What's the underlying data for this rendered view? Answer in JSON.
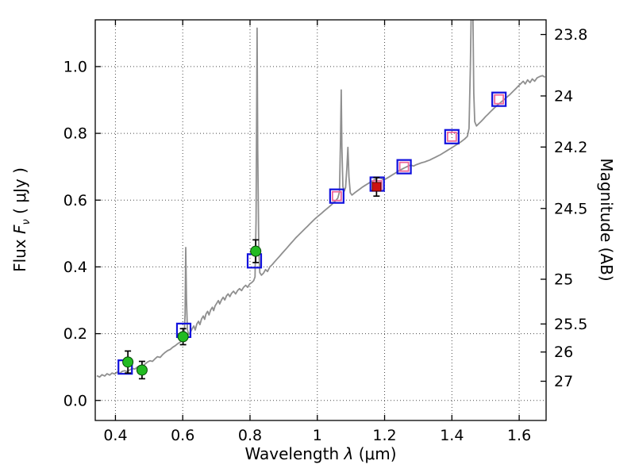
{
  "chart_data": {
    "type": "line",
    "title": "",
    "xlabel_parts": {
      "prefix": "Wavelength ",
      "symbol": "λ",
      "units": " (μm)"
    },
    "ylabel_left_parts": {
      "prefix": "Flux ",
      "symbol": "F",
      "sub": "ν",
      "units": " ( μJy )"
    },
    "ylabel_right": "Magnitude (AB)",
    "xlim": [
      0.34,
      1.68
    ],
    "ylim": [
      -0.06,
      1.14
    ],
    "grid": {
      "show": true,
      "color": "#4a4a4a",
      "dash": "1 3"
    },
    "frame_color": "#000000",
    "errorbar_color": "#000000",
    "x_ticks": [
      {
        "v": 0.4,
        "label": "0.4"
      },
      {
        "v": 0.6,
        "label": "0.6"
      },
      {
        "v": 0.8,
        "label": "0.8"
      },
      {
        "v": 1.0,
        "label": "1"
      },
      {
        "v": 1.2,
        "label": "1.2"
      },
      {
        "v": 1.4,
        "label": "1.4"
      },
      {
        "v": 1.6,
        "label": "1.6"
      }
    ],
    "y_ticks_left": [
      {
        "v": 0.0,
        "label": "0.0"
      },
      {
        "v": 0.2,
        "label": "0.2"
      },
      {
        "v": 0.4,
        "label": "0.4"
      },
      {
        "v": 0.6,
        "label": "0.6"
      },
      {
        "v": 0.8,
        "label": "0.8"
      },
      {
        "v": 1.0,
        "label": "1.0"
      }
    ],
    "y_ticks_right": [
      {
        "flux": 1.096,
        "label": "23.8"
      },
      {
        "flux": 0.912,
        "label": "24"
      },
      {
        "flux": 0.759,
        "label": "24.2"
      },
      {
        "flux": 0.575,
        "label": "24.5"
      },
      {
        "flux": 0.363,
        "label": "25"
      },
      {
        "flux": 0.229,
        "label": "25.5"
      },
      {
        "flux": 0.145,
        "label": "26"
      },
      {
        "flux": 0.0575,
        "label": "27"
      }
    ],
    "series": [
      {
        "name": "model-spectrum",
        "kind": "line",
        "color": "#8f8f8f",
        "width": 1.8,
        "points": [
          [
            0.345,
            0.074
          ],
          [
            0.353,
            0.07
          ],
          [
            0.36,
            0.077
          ],
          [
            0.368,
            0.073
          ],
          [
            0.375,
            0.08
          ],
          [
            0.383,
            0.076
          ],
          [
            0.39,
            0.082
          ],
          [
            0.398,
            0.079
          ],
          [
            0.405,
            0.085
          ],
          [
            0.413,
            0.081
          ],
          [
            0.42,
            0.087
          ],
          [
            0.428,
            0.089
          ],
          [
            0.435,
            0.086
          ],
          [
            0.443,
            0.092
          ],
          [
            0.45,
            0.096
          ],
          [
            0.458,
            0.094
          ],
          [
            0.465,
            0.1
          ],
          [
            0.472,
            0.104
          ],
          [
            0.48,
            0.102
          ],
          [
            0.488,
            0.109
          ],
          [
            0.495,
            0.115
          ],
          [
            0.503,
            0.119
          ],
          [
            0.51,
            0.117
          ],
          [
            0.518,
            0.125
          ],
          [
            0.525,
            0.131
          ],
          [
            0.533,
            0.129
          ],
          [
            0.54,
            0.137
          ],
          [
            0.548,
            0.144
          ],
          [
            0.555,
            0.149
          ],
          [
            0.563,
            0.153
          ],
          [
            0.57,
            0.159
          ],
          [
            0.578,
            0.164
          ],
          [
            0.585,
            0.17
          ],
          [
            0.593,
            0.175
          ],
          [
            0.6,
            0.179
          ],
          [
            0.604,
            0.186
          ],
          [
            0.607,
            0.26
          ],
          [
            0.609,
            0.458
          ],
          [
            0.611,
            0.305
          ],
          [
            0.614,
            0.212
          ],
          [
            0.618,
            0.197
          ],
          [
            0.623,
            0.205
          ],
          [
            0.628,
            0.215
          ],
          [
            0.633,
            0.223
          ],
          [
            0.637,
            0.211
          ],
          [
            0.642,
            0.229
          ],
          [
            0.647,
            0.237
          ],
          [
            0.651,
            0.227
          ],
          [
            0.656,
            0.244
          ],
          [
            0.661,
            0.253
          ],
          [
            0.665,
            0.243
          ],
          [
            0.669,
            0.259
          ],
          [
            0.674,
            0.267
          ],
          [
            0.678,
            0.256
          ],
          [
            0.683,
            0.271
          ],
          [
            0.688,
            0.279
          ],
          [
            0.692,
            0.269
          ],
          [
            0.696,
            0.283
          ],
          [
            0.701,
            0.291
          ],
          [
            0.706,
            0.299
          ],
          [
            0.71,
            0.289
          ],
          [
            0.715,
            0.301
          ],
          [
            0.72,
            0.309
          ],
          [
            0.725,
            0.301
          ],
          [
            0.73,
            0.313
          ],
          [
            0.735,
            0.319
          ],
          [
            0.74,
            0.311
          ],
          [
            0.745,
            0.321
          ],
          [
            0.751,
            0.327
          ],
          [
            0.757,
            0.319
          ],
          [
            0.763,
            0.329
          ],
          [
            0.769,
            0.335
          ],
          [
            0.775,
            0.329
          ],
          [
            0.781,
            0.339
          ],
          [
            0.787,
            0.345
          ],
          [
            0.793,
            0.339
          ],
          [
            0.799,
            0.349
          ],
          [
            0.805,
            0.353
          ],
          [
            0.811,
            0.359
          ],
          [
            0.815,
            0.37
          ],
          [
            0.818,
            0.54
          ],
          [
            0.82,
            0.92
          ],
          [
            0.821,
            1.115
          ],
          [
            0.823,
            0.75
          ],
          [
            0.826,
            0.46
          ],
          [
            0.829,
            0.383
          ],
          [
            0.834,
            0.375
          ],
          [
            0.84,
            0.381
          ],
          [
            0.846,
            0.392
          ],
          [
            0.852,
            0.386
          ],
          [
            0.859,
            0.4
          ],
          [
            0.866,
            0.407
          ],
          [
            0.873,
            0.415
          ],
          [
            0.88,
            0.423
          ],
          [
            0.887,
            0.431
          ],
          [
            0.894,
            0.439
          ],
          [
            0.901,
            0.447
          ],
          [
            0.908,
            0.455
          ],
          [
            0.915,
            0.463
          ],
          [
            0.922,
            0.471
          ],
          [
            0.929,
            0.479
          ],
          [
            0.936,
            0.487
          ],
          [
            0.943,
            0.494
          ],
          [
            0.95,
            0.501
          ],
          [
            0.957,
            0.508
          ],
          [
            0.964,
            0.515
          ],
          [
            0.971,
            0.522
          ],
          [
            0.978,
            0.529
          ],
          [
            0.985,
            0.536
          ],
          [
            0.992,
            0.543
          ],
          [
            0.999,
            0.549
          ],
          [
            1.006,
            0.555
          ],
          [
            1.013,
            0.561
          ],
          [
            1.02,
            0.567
          ],
          [
            1.027,
            0.573
          ],
          [
            1.034,
            0.579
          ],
          [
            1.041,
            0.585
          ],
          [
            1.048,
            0.592
          ],
          [
            1.055,
            0.599
          ],
          [
            1.061,
            0.606
          ],
          [
            1.066,
            0.625
          ],
          [
            1.069,
            0.78
          ],
          [
            1.071,
            0.93
          ],
          [
            1.073,
            0.76
          ],
          [
            1.076,
            0.64
          ],
          [
            1.08,
            0.627
          ],
          [
            1.084,
            0.638
          ],
          [
            1.088,
            0.7
          ],
          [
            1.091,
            0.758
          ],
          [
            1.094,
            0.67
          ],
          [
            1.098,
            0.622
          ],
          [
            1.103,
            0.615
          ],
          [
            1.11,
            0.621
          ],
          [
            1.118,
            0.627
          ],
          [
            1.126,
            0.633
          ],
          [
            1.134,
            0.639
          ],
          [
            1.142,
            0.644
          ],
          [
            1.15,
            0.649
          ],
          [
            1.158,
            0.654
          ],
          [
            1.166,
            0.659
          ],
          [
            1.174,
            0.663
          ],
          [
            1.182,
            0.667
          ],
          [
            1.19,
            0.665
          ],
          [
            1.198,
            0.661
          ],
          [
            1.206,
            0.665
          ],
          [
            1.214,
            0.67
          ],
          [
            1.222,
            0.675
          ],
          [
            1.23,
            0.68
          ],
          [
            1.238,
            0.685
          ],
          [
            1.246,
            0.69
          ],
          [
            1.254,
            0.694
          ],
          [
            1.262,
            0.698
          ],
          [
            1.27,
            0.702
          ],
          [
            1.278,
            0.705
          ],
          [
            1.286,
            0.702
          ],
          [
            1.294,
            0.706
          ],
          [
            1.302,
            0.709
          ],
          [
            1.31,
            0.712
          ],
          [
            1.318,
            0.714
          ],
          [
            1.326,
            0.717
          ],
          [
            1.334,
            0.72
          ],
          [
            1.342,
            0.724
          ],
          [
            1.35,
            0.728
          ],
          [
            1.358,
            0.732
          ],
          [
            1.366,
            0.736
          ],
          [
            1.374,
            0.741
          ],
          [
            1.382,
            0.746
          ],
          [
            1.39,
            0.751
          ],
          [
            1.398,
            0.756
          ],
          [
            1.406,
            0.761
          ],
          [
            1.414,
            0.766
          ],
          [
            1.422,
            0.771
          ],
          [
            1.43,
            0.777
          ],
          [
            1.438,
            0.783
          ],
          [
            1.446,
            0.791
          ],
          [
            1.451,
            0.815
          ],
          [
            1.455,
            1.0
          ],
          [
            1.458,
            1.2
          ],
          [
            1.462,
            1.2
          ],
          [
            1.465,
            0.92
          ],
          [
            1.468,
            0.835
          ],
          [
            1.473,
            0.822
          ],
          [
            1.479,
            0.828
          ],
          [
            1.486,
            0.835
          ],
          [
            1.493,
            0.842
          ],
          [
            1.5,
            0.85
          ],
          [
            1.507,
            0.857
          ],
          [
            1.514,
            0.864
          ],
          [
            1.521,
            0.871
          ],
          [
            1.528,
            0.878
          ],
          [
            1.535,
            0.884
          ],
          [
            1.542,
            0.89
          ],
          [
            1.549,
            0.896
          ],
          [
            1.556,
            0.902
          ],
          [
            1.563,
            0.908
          ],
          [
            1.57,
            0.914
          ],
          [
            1.577,
            0.921
          ],
          [
            1.584,
            0.928
          ],
          [
            1.591,
            0.935
          ],
          [
            1.598,
            0.942
          ],
          [
            1.605,
            0.949
          ],
          [
            1.612,
            0.956
          ],
          [
            1.618,
            0.948
          ],
          [
            1.625,
            0.96
          ],
          [
            1.632,
            0.952
          ],
          [
            1.639,
            0.963
          ],
          [
            1.646,
            0.956
          ],
          [
            1.653,
            0.966
          ],
          [
            1.661,
            0.97
          ],
          [
            1.669,
            0.973
          ],
          [
            1.677,
            0.968
          ]
        ]
      },
      {
        "name": "model-photometry",
        "kind": "scatter",
        "marker": "open-square",
        "color": "#1111dd",
        "size": 17,
        "stroke_width": 2.2,
        "points": [
          [
            0.429,
            0.1
          ],
          [
            0.603,
            0.21
          ],
          [
            0.813,
            0.418
          ],
          [
            1.058,
            0.612
          ],
          [
            1.178,
            0.648
          ],
          [
            1.258,
            0.7
          ],
          [
            1.4,
            0.79
          ],
          [
            1.54,
            0.902
          ]
        ]
      },
      {
        "name": "observed-photometry-ir",
        "kind": "scatter",
        "marker": "open-square",
        "color": "#ee6699",
        "size": 11,
        "stroke_width": 1.8,
        "points": [
          [
            1.058,
            0.612
          ],
          [
            1.178,
            0.645
          ],
          [
            1.258,
            0.7
          ],
          [
            1.4,
            0.79
          ],
          [
            1.54,
            0.902
          ]
        ]
      },
      {
        "name": "observed-photometry-optical",
        "kind": "scatter",
        "marker": "circle",
        "color": "#22bb22",
        "edge": "#064a06",
        "size": 13,
        "points": [
          [
            0.437,
            0.115,
            0.033
          ],
          [
            0.479,
            0.091,
            0.026
          ],
          [
            0.601,
            0.191,
            0.024
          ],
          [
            0.817,
            0.447,
            0.034
          ]
        ]
      },
      {
        "name": "observed-photometry-red",
        "kind": "scatter",
        "marker": "filled-square",
        "color": "#cc1111",
        "edge": "#550000",
        "size": 11,
        "points": [
          [
            1.176,
            0.64,
            0.028
          ]
        ]
      }
    ]
  }
}
